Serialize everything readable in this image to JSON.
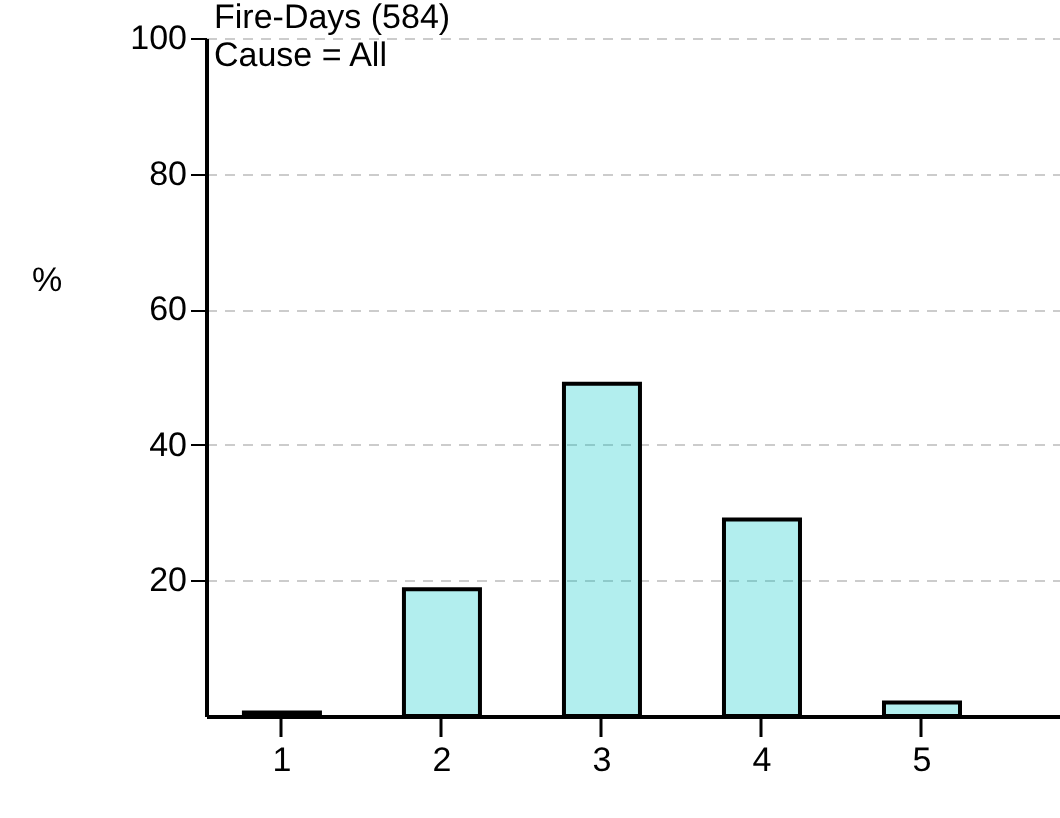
{
  "chart_data": {
    "type": "bar",
    "title": "Fire-Days (584)",
    "subtitle": "Cause = All",
    "ylabel": "%",
    "categories": [
      "1",
      "2",
      "3",
      "4",
      "5"
    ],
    "values": [
      0.5,
      18.7,
      49,
      29,
      2
    ],
    "color": "#00c8c8",
    "ylim": [
      0,
      100
    ],
    "yticks": [
      20,
      40,
      60,
      80,
      100
    ],
    "grid": "y"
  }
}
